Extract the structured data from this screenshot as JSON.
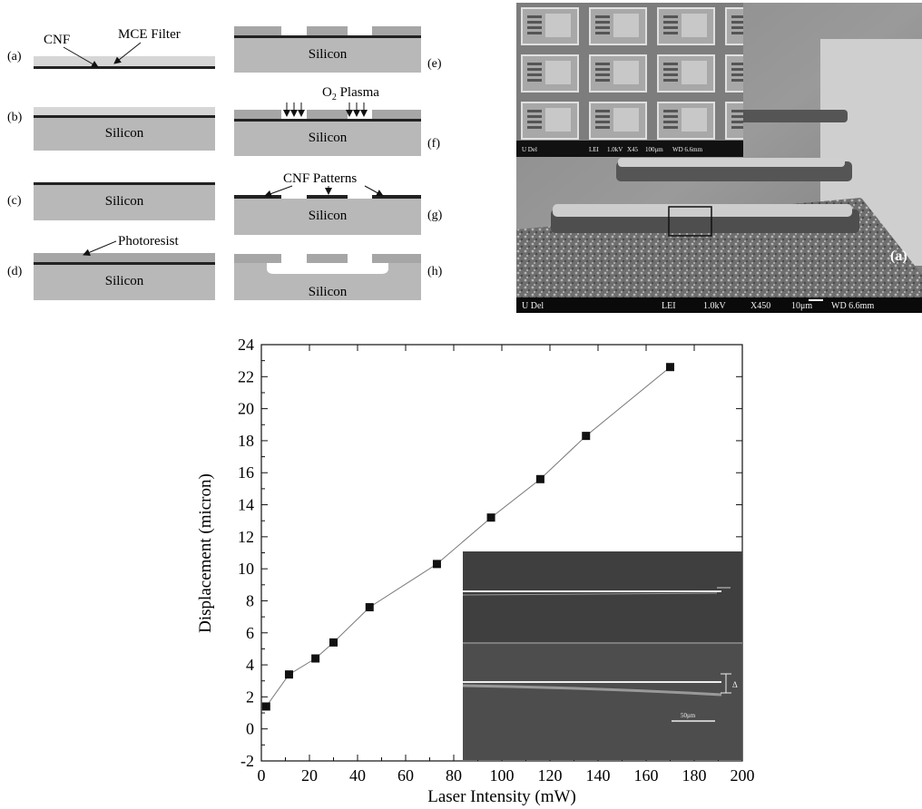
{
  "process_diagram": {
    "labels_left": [
      "(a)",
      "(b)",
      "(c)",
      "(d)"
    ],
    "labels_right": [
      "(e)",
      "(f)",
      "(g)",
      "(h)"
    ],
    "substrate_label": "Silicon",
    "callouts": {
      "cnf": "CNF",
      "mce_filter": "MCE Filter",
      "photoresist": "Photoresist",
      "o2_plasma": "O",
      "o2_sub": "2",
      "o2_rest": " Plasma",
      "cnf_patterns": "CNF Patterns"
    }
  },
  "sem_image": {
    "panel_label": "(a)",
    "main_bar": [
      "U Del",
      "LEI",
      "1.0kV",
      "X450",
      "10μm",
      "WD 6.6mm"
    ],
    "inset_bar": [
      "U Del",
      "LEI",
      "1.0kV",
      "X45",
      "100μm",
      "WD 6.6mm"
    ]
  },
  "inset_image": {
    "delta_label": "Δ",
    "scale_label": "50μm"
  },
  "chart_data": {
    "type": "line",
    "xlabel": "Laser Intensity (mW)",
    "ylabel": "Displacement (micron)",
    "xlim": [
      0,
      200
    ],
    "ylim": [
      -2,
      24
    ],
    "xticks": [
      0,
      20,
      40,
      60,
      80,
      100,
      120,
      140,
      160,
      180,
      200
    ],
    "yticks": [
      -2,
      0,
      2,
      4,
      6,
      8,
      10,
      12,
      14,
      16,
      18,
      20,
      22,
      24
    ],
    "series": [
      {
        "x": [
          2,
          11.5,
          22.5,
          30,
          45,
          73,
          95.5,
          116,
          135,
          170
        ],
        "y": [
          1.4,
          3.4,
          4.4,
          5.4,
          7.6,
          10.3,
          13.2,
          15.6,
          18.3,
          22.6
        ]
      }
    ]
  }
}
